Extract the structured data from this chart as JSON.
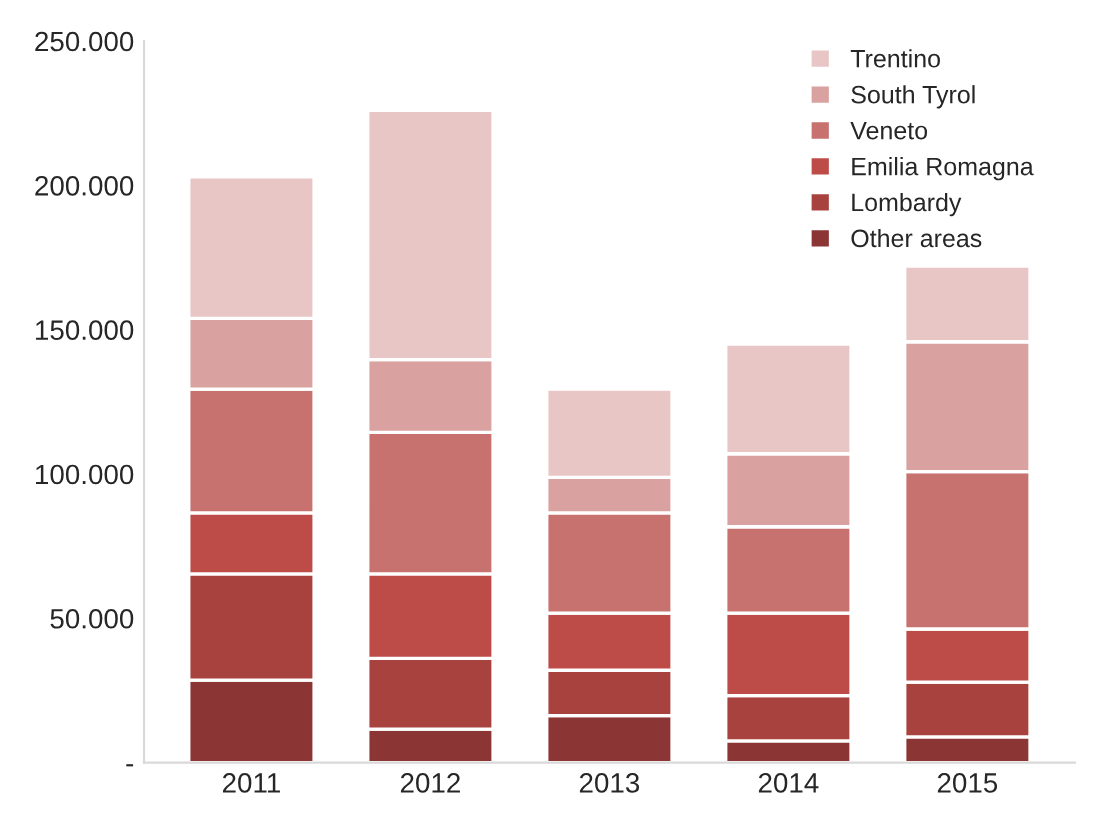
{
  "chart_data": {
    "type": "bar",
    "stacked": true,
    "categories": [
      "2011",
      "2012",
      "2013",
      "2014",
      "2015"
    ],
    "series": [
      {
        "name": "Other areas",
        "color": "#8b3535",
        "values": [
          28600,
          11600,
          16300,
          7500,
          8900
        ]
      },
      {
        "name": "Lombardy",
        "color": "#a8423f",
        "values": [
          36800,
          24500,
          15700,
          15700,
          19000
        ]
      },
      {
        "name": "Emilia Romagna",
        "color": "#bd4b47",
        "values": [
          21100,
          29300,
          19800,
          28600,
          18400
        ]
      },
      {
        "name": "Veneto",
        "color": "#c87270",
        "values": [
          42900,
          49000,
          34700,
          29900,
          54500
        ]
      },
      {
        "name": "South Tyrol",
        "color": "#d9a19f",
        "values": [
          24500,
          25200,
          12300,
          25300,
          45000
        ]
      },
      {
        "name": "Trentino",
        "color": "#e8c6c5",
        "values": [
          49000,
          86400,
          30600,
          38000,
          26200
        ]
      }
    ],
    "ylim": [
      0,
      250000
    ],
    "yticks": [
      {
        "value": 0,
        "label": "-"
      },
      {
        "value": 50000,
        "label": "50.000"
      },
      {
        "value": 100000,
        "label": "100.000"
      },
      {
        "value": 150000,
        "label": "150.000"
      },
      {
        "value": 200000,
        "label": "200.000"
      },
      {
        "value": 250000,
        "label": "250.000"
      }
    ],
    "legend": "top right"
  }
}
